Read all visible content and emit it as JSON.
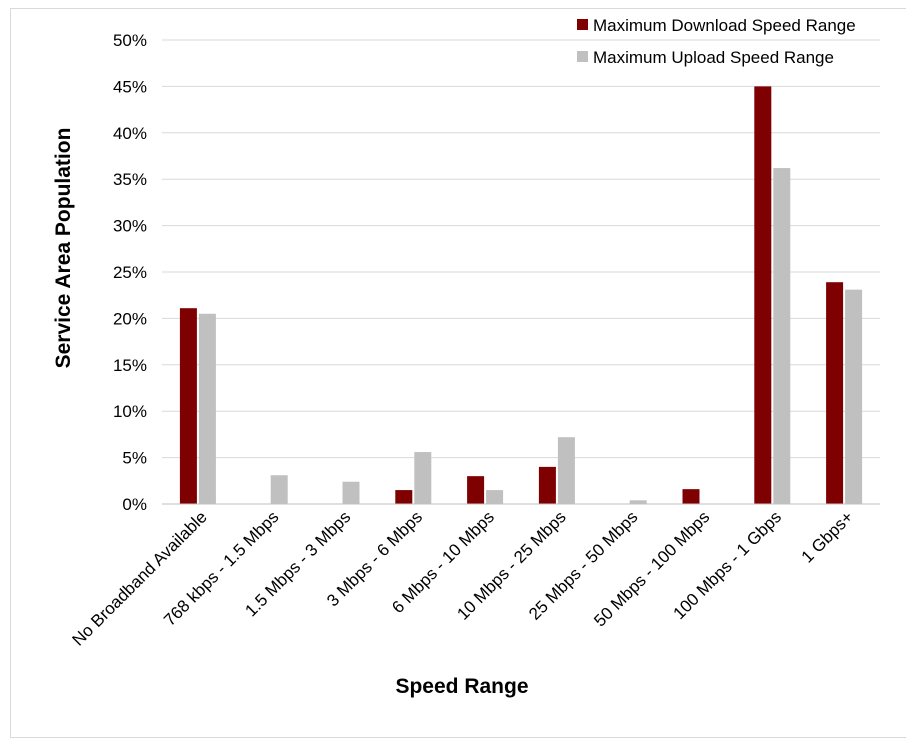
{
  "chart_data": {
    "type": "bar",
    "title": "",
    "xlabel": "Speed Range",
    "ylabel": "Service Area Population",
    "categories": [
      "No Broadband Available",
      "768 kbps - 1.5 Mbps",
      "1.5 Mbps - 3 Mbps",
      "3 Mbps - 6 Mbps",
      "6 Mbps - 10 Mbps",
      "10 Mbps - 25 Mbps",
      "25 Mbps - 50 Mbps",
      "50 Mbps - 100 Mbps",
      "100 Mbps - 1 Gbps",
      "1 Gbps+"
    ],
    "series": [
      {
        "name": "Maximum Download Speed Range",
        "color": "#7f0000",
        "values": [
          21.1,
          0,
          0,
          1.5,
          3.0,
          4.0,
          0,
          1.6,
          45.0,
          23.9
        ]
      },
      {
        "name": "Maximum Upload Speed Range",
        "color": "#c0c0c0",
        "values": [
          20.5,
          3.1,
          2.4,
          5.6,
          1.5,
          7.2,
          0.4,
          0,
          36.2,
          23.1
        ]
      }
    ],
    "ylim": [
      0,
      50
    ],
    "yticks": [
      "0%",
      "5%",
      "10%",
      "15%",
      "20%",
      "25%",
      "30%",
      "35%",
      "40%",
      "45%",
      "50%"
    ],
    "grid": true,
    "legend_position": "top-right"
  }
}
